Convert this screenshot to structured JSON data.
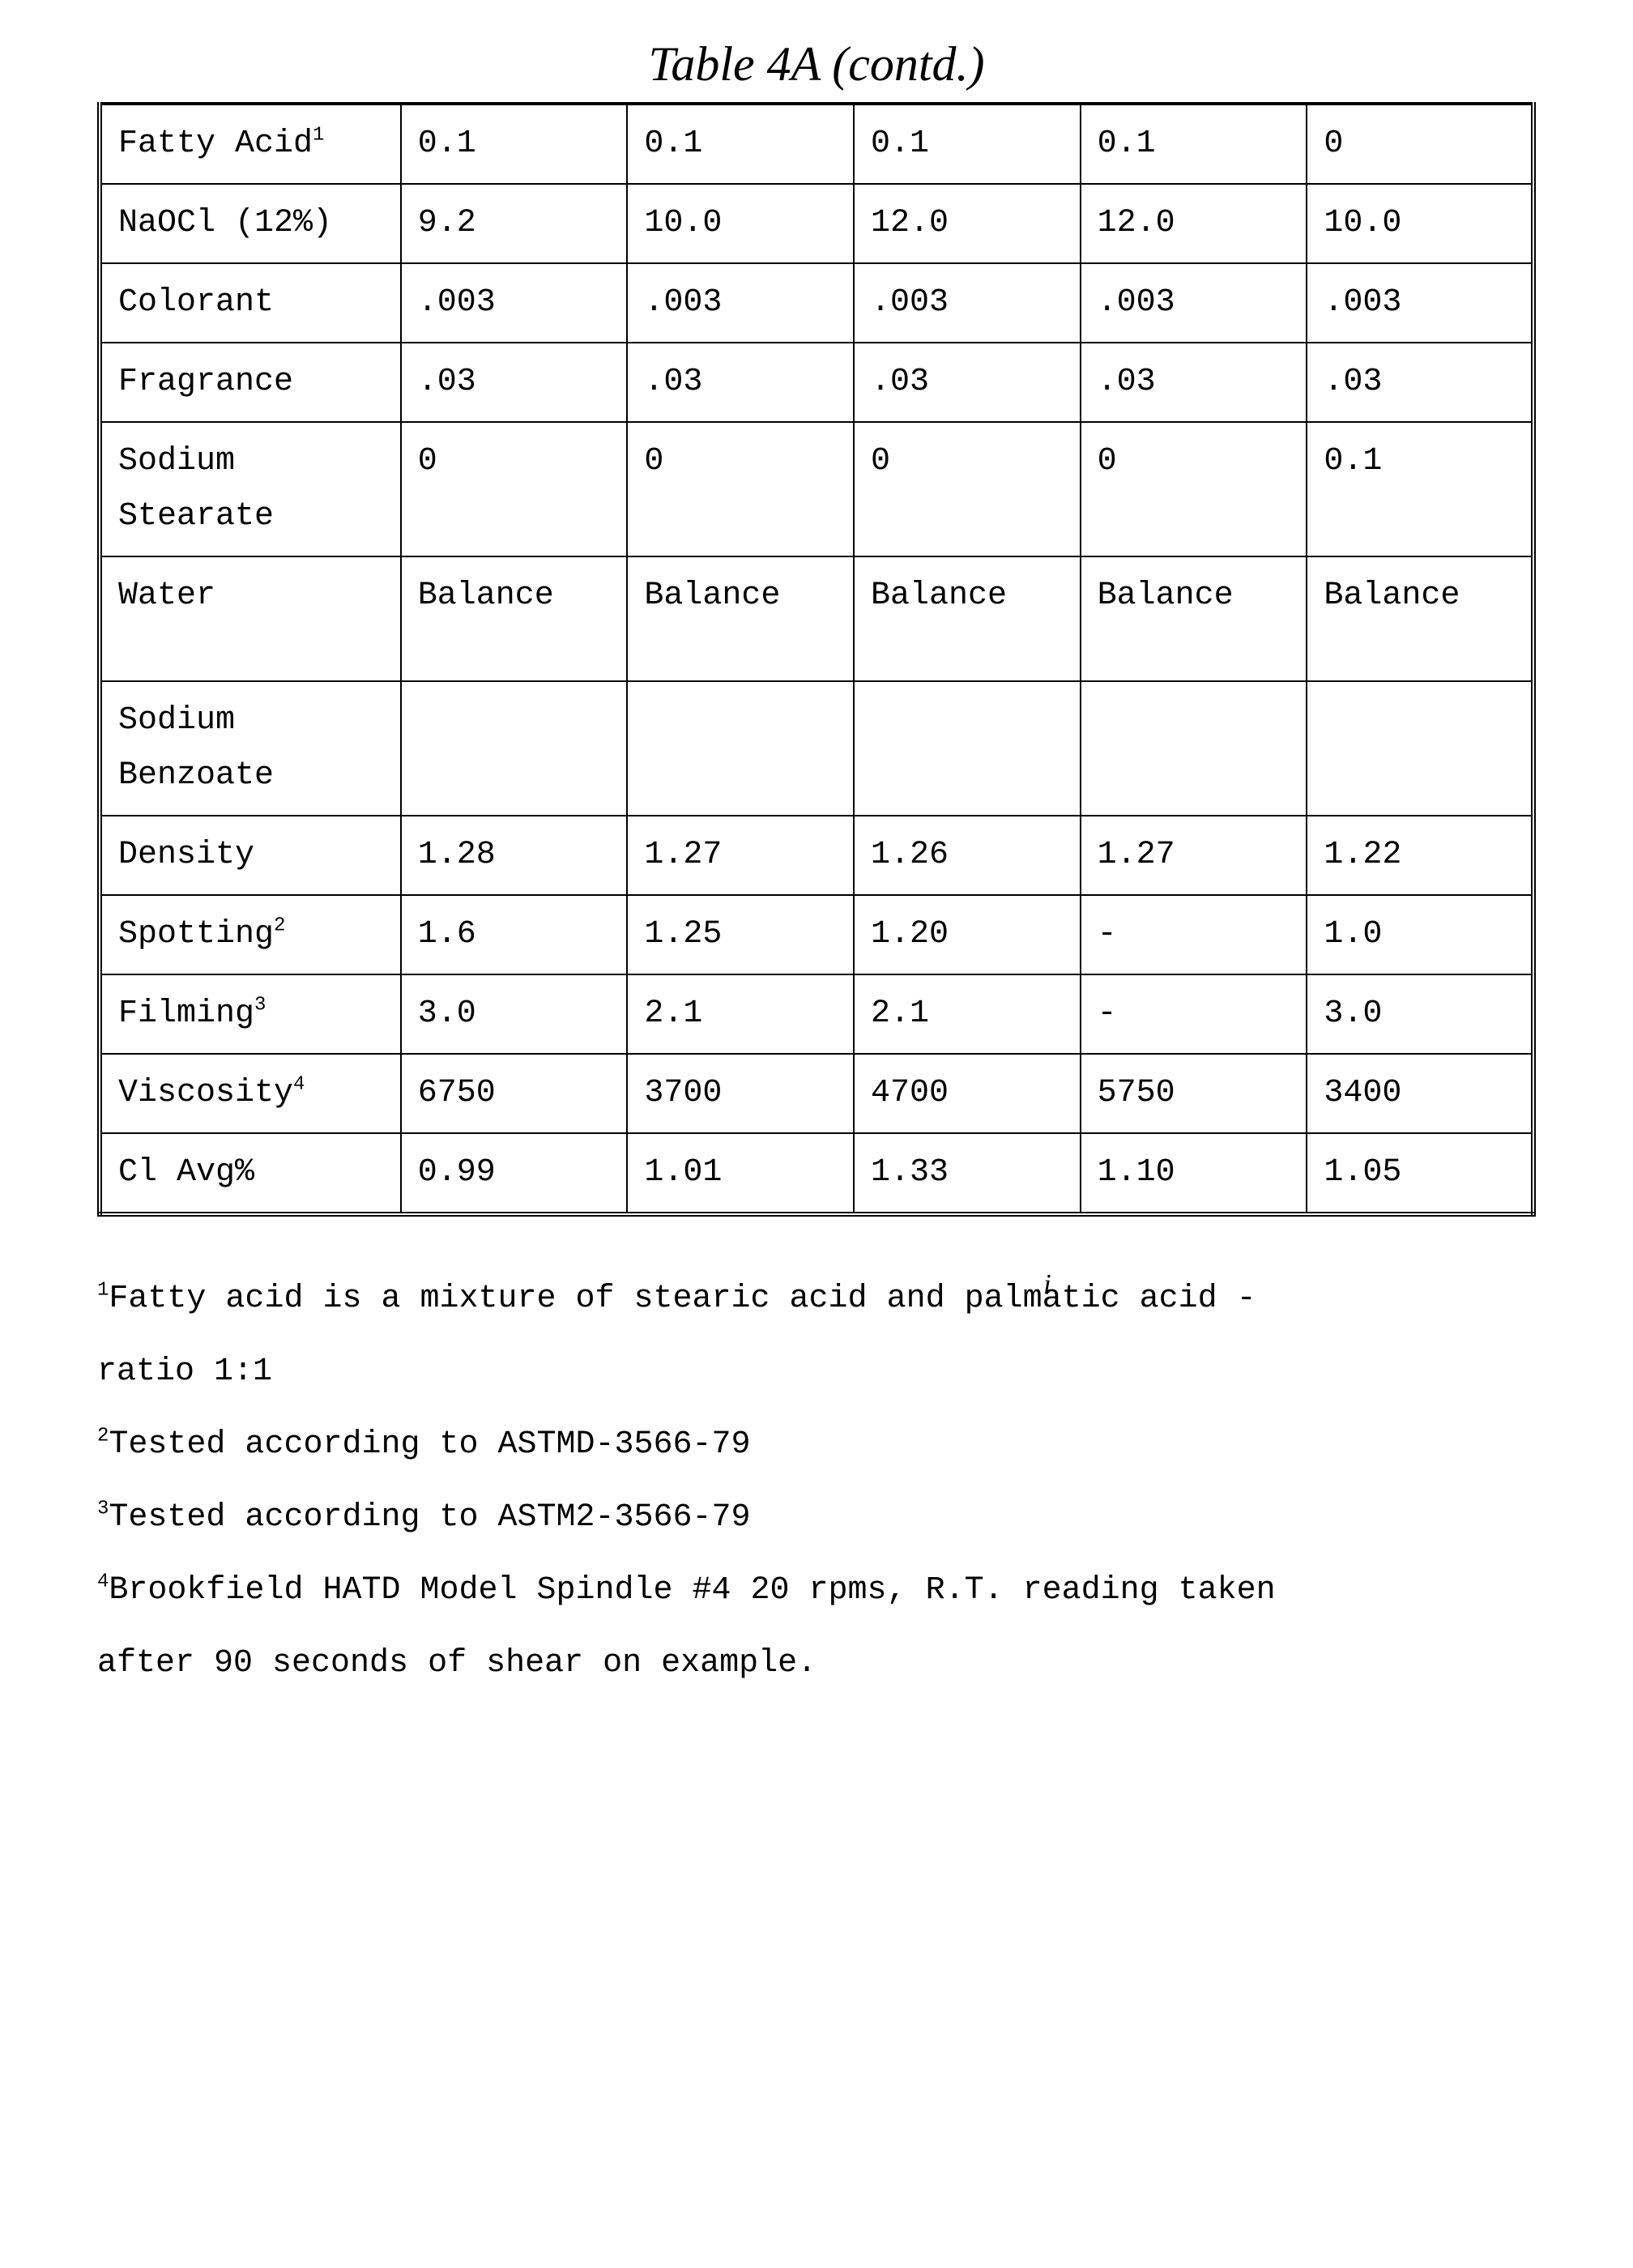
{
  "title": "Table 4A (contd.)",
  "table": {
    "col_widths_pct": [
      21,
      15.8,
      15.8,
      15.8,
      15.8,
      15.8
    ],
    "row_labels": [
      {
        "text": "Fatty Acid",
        "sup": "1"
      },
      {
        "text": "NaOCl (12%)"
      },
      {
        "text": "Colorant"
      },
      {
        "text": "Fragrance"
      },
      {
        "text": "Sodium\nStearate"
      },
      {
        "text": "Water",
        "extra_pad_bottom": true
      },
      {
        "text": "Sodium\nBenzoate"
      },
      {
        "text": "Density"
      },
      {
        "text": "Spotting",
        "sup": "2"
      },
      {
        "text": "Filming",
        "sup": "3"
      },
      {
        "text": "Viscosity",
        "sup": "4"
      },
      {
        "text": "Cl Avg%"
      }
    ],
    "data_rows": [
      [
        "0.1",
        "0.1",
        "0.1",
        "0.1",
        "0"
      ],
      [
        "9.2",
        "10.0",
        "12.0",
        "12.0",
        "10.0"
      ],
      [
        ".003",
        ".003",
        ".003",
        ".003",
        ".003"
      ],
      [
        ".03",
        ".03",
        ".03",
        ".03",
        ".03"
      ],
      [
        "0",
        "0",
        "0",
        "0",
        "0.1"
      ],
      [
        "Balance",
        "Balance",
        "Balance",
        "Balance",
        "Balance"
      ],
      [
        "",
        "",
        "",
        "",
        ""
      ],
      [
        "1.28",
        "1.27",
        "1.26",
        "1.27",
        "1.22"
      ],
      [
        "1.6",
        "1.25",
        "1.20",
        "-",
        "1.0"
      ],
      [
        "3.0",
        "2.1",
        "2.1",
        "-",
        "3.0"
      ],
      [
        "6750",
        "3700",
        "4700",
        "5750",
        "3400"
      ],
      [
        "0.99",
        "1.01",
        "1.33",
        "1.10",
        "1.05"
      ]
    ]
  },
  "footnotes": [
    {
      "sup": "1",
      "text_before": "Fatty acid is a mixture of stearic acid and palm",
      "insert_char": "a",
      "text_after_insert": "tic acid -",
      "line2": "ratio 1:1"
    },
    {
      "sup": "2",
      "text": "Tested according to ASTMD-3566-79"
    },
    {
      "sup": "3",
      "text": "Tested according to ASTM2-3566-79"
    },
    {
      "sup": "4",
      "text": "Brookfield HATD Model Spindle #4 20 rpms, R.T. reading taken",
      "line2": "after 90 seconds of shear on example."
    }
  ],
  "colors": {
    "text": "#000000",
    "background": "#ffffff",
    "border": "#000000"
  },
  "fonts": {
    "body_family": "Courier New",
    "title_family": "Brush Script MT",
    "body_size_pt": 30,
    "title_size_pt": 45
  }
}
